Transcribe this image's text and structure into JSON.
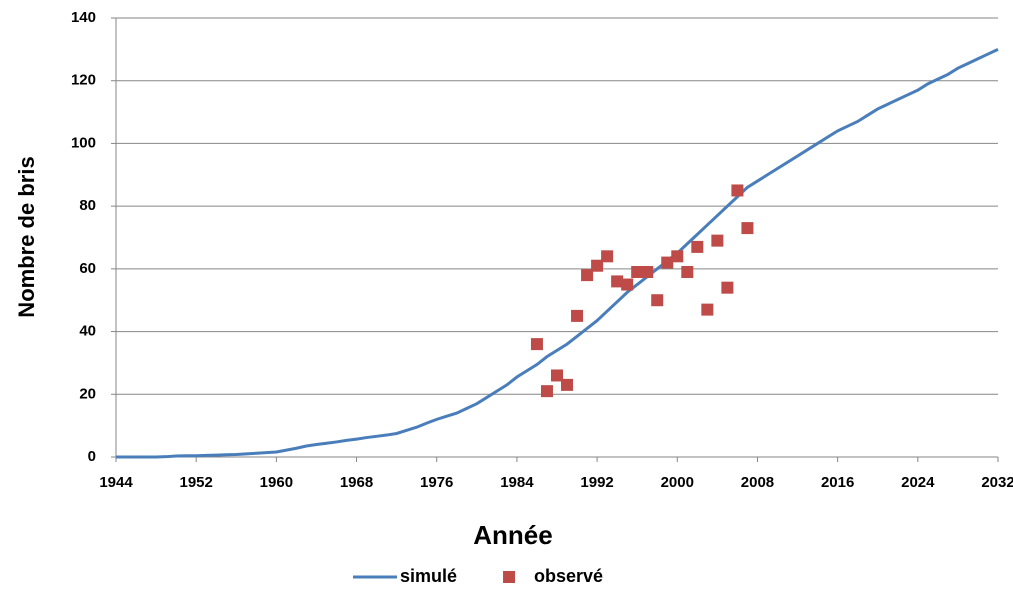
{
  "chart_data": {
    "type": "line-scatter",
    "x_label": "Année",
    "y_label": "Nombre de bris",
    "xlim": [
      1944,
      2032
    ],
    "xticks": [
      1944,
      1952,
      1960,
      1968,
      1976,
      1984,
      1992,
      2000,
      2008,
      2016,
      2024,
      2032
    ],
    "ylim": [
      0,
      140
    ],
    "yticks": [
      0,
      20,
      40,
      60,
      80,
      100,
      120,
      140
    ],
    "grid": true,
    "legend": "bottom",
    "series": [
      {
        "name": "simulé",
        "kind": "line",
        "color": "#4a7ebb",
        "x": [
          1944,
          1945,
          1946,
          1947,
          1948,
          1949,
          1950,
          1951,
          1952,
          1953,
          1954,
          1955,
          1956,
          1957,
          1958,
          1959,
          1960,
          1961,
          1962,
          1963,
          1964,
          1965,
          1966,
          1967,
          1968,
          1969,
          1970,
          1971,
          1972,
          1973,
          1974,
          1975,
          1976,
          1977,
          1978,
          1979,
          1980,
          1981,
          1982,
          1983,
          1984,
          1985,
          1986,
          1987,
          1988,
          1989,
          1990,
          1991,
          1992,
          1993,
          1994,
          1995,
          1996,
          1997,
          1998,
          1999,
          2000,
          2001,
          2002,
          2003,
          2004,
          2005,
          2006,
          2007,
          2008,
          2009,
          2010,
          2011,
          2012,
          2013,
          2014,
          2015,
          2016,
          2017,
          2018,
          2019,
          2020,
          2021,
          2022,
          2023,
          2024,
          2025,
          2026,
          2027,
          2028,
          2029,
          2030,
          2031,
          2032
        ],
        "values": [
          0,
          0,
          0,
          0,
          0,
          0.1,
          0.3,
          0.4,
          0.4,
          0.5,
          0.6,
          0.7,
          0.8,
          1,
          1.2,
          1.4,
          1.6,
          2.2,
          2.8,
          3.5,
          4,
          4.4,
          4.8,
          5.3,
          5.7,
          6.2,
          6.6,
          7,
          7.5,
          8.5,
          9.5,
          10.8,
          12,
          13,
          14,
          15.5,
          17,
          19,
          21,
          23,
          25.5,
          27.5,
          29.5,
          32,
          34,
          36,
          38.5,
          41,
          43.5,
          46.5,
          49.5,
          52.5,
          55,
          57.5,
          60,
          62.5,
          65,
          68,
          71,
          74,
          77,
          80,
          83,
          86,
          88,
          90,
          92,
          94,
          96,
          98,
          100,
          102,
          104,
          105.5,
          107,
          109,
          111,
          112.5,
          114,
          115.5,
          117,
          119,
          120.5,
          122,
          124,
          125.5,
          127,
          128.5,
          130
        ]
      },
      {
        "name": "observé",
        "kind": "scatter",
        "color": "#be4b48",
        "x": [
          1986,
          1987,
          1988,
          1989,
          1990,
          1991,
          1992,
          1993,
          1994,
          1995,
          1996,
          1997,
          1998,
          1999,
          2000,
          2001,
          2002,
          2003,
          2004,
          2005,
          2006,
          2007
        ],
        "values": [
          36,
          21,
          26,
          23,
          45,
          58,
          61,
          64,
          56,
          55,
          59,
          59,
          50,
          62,
          64,
          59,
          67,
          47,
          69,
          54,
          85,
          73
        ]
      }
    ]
  }
}
